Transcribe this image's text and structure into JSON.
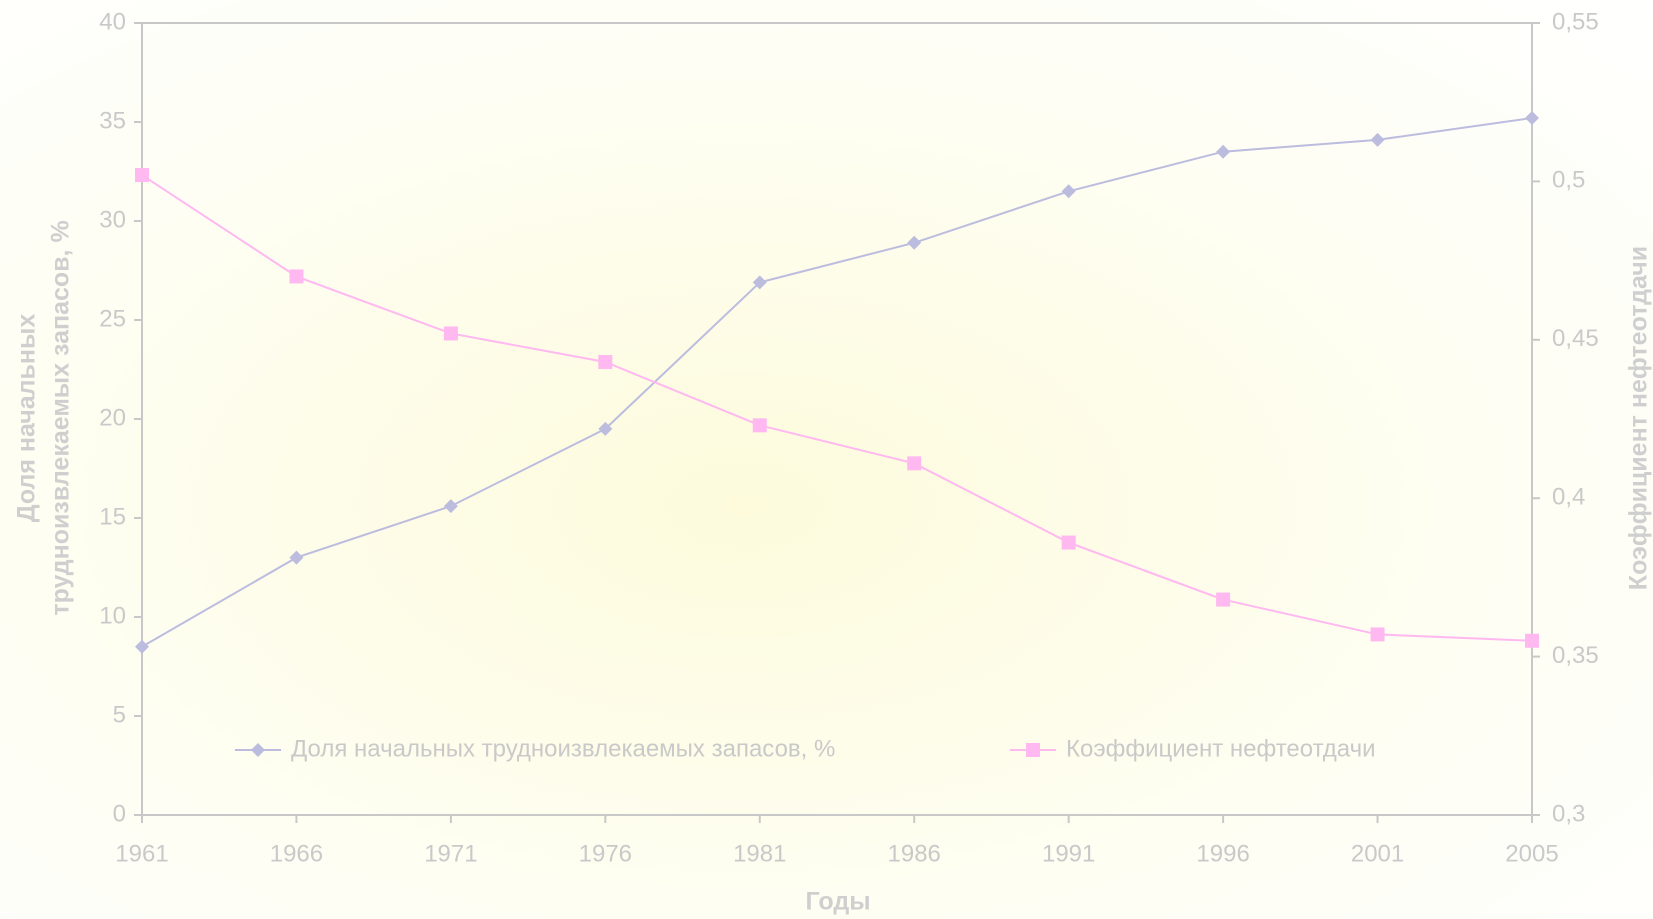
{
  "chart_data": {
    "type": "line",
    "x_label": "Годы",
    "y_label": [
      "Доля начальных",
      "трудноизвлекаемых запасов, %"
    ],
    "y2_label": "Коэффициент нефтеотдачи",
    "categories": [
      "1961",
      "1966",
      "1971",
      "1976",
      "1981",
      "1986",
      "1991",
      "1996",
      "2001",
      "2005"
    ],
    "series": [
      {
        "name": "Доля начальных  трудноизвлекаемых запасов, %",
        "color": "#bcbcdf",
        "marker": "diamond",
        "values": [
          8.5,
          13,
          15.6,
          19.5,
          26.9,
          28.9,
          31.5,
          33.5,
          34.1,
          35.2
        ]
      },
      {
        "name": "Коэффициент нефтеотдачи",
        "color": "#ffb8f0",
        "marker": "square",
        "axis": "y2",
        "values": [
          0.502,
          0.47,
          0.452,
          0.443,
          0.423,
          0.411,
          0.386,
          0.368,
          0.357,
          0.355
        ]
      }
    ],
    "ylim": [
      0,
      40
    ],
    "yticks": [
      0,
      5,
      10,
      15,
      20,
      25,
      30,
      35,
      40
    ],
    "y2lim": [
      0.3,
      0.55
    ],
    "y2ticks": [
      {
        "value": 0.3,
        "label": "0,3"
      },
      {
        "value": 0.35,
        "label": "0,35"
      },
      {
        "value": 0.4,
        "label": "0,4"
      },
      {
        "value": 0.45,
        "label": "0,45"
      },
      {
        "value": 0.5,
        "label": "0,5"
      },
      {
        "value": 0.55,
        "label": "0,55"
      }
    ],
    "legend": "lower center",
    "grid": false
  }
}
